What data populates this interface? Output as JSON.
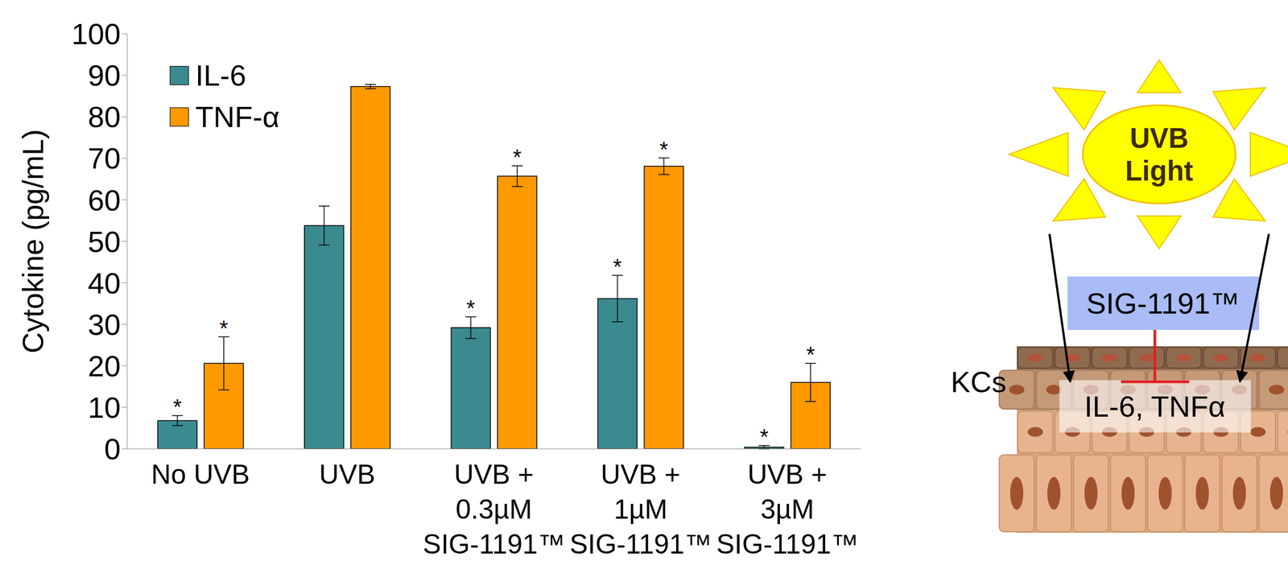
{
  "chart_data": {
    "type": "bar",
    "y_label": "Cytokine (pg/mL)",
    "categories": [
      "No UVB",
      "UVB",
      "UVB +\n0.3µM\nSIG-1191™",
      "UVB +\n1µM\nSIG-1191™",
      "UVB +\n3µM\nSIG-1191™"
    ],
    "series": [
      {
        "name": "IL-6",
        "color": "#3a8a8f",
        "values": [
          6.8,
          53.8,
          29.2,
          36.2,
          0.4
        ],
        "errors": [
          1.2,
          4.7,
          2.6,
          5.6,
          0.4
        ],
        "significance": [
          "*",
          null,
          "*",
          "*",
          "*"
        ]
      },
      {
        "name": "TNF-α",
        "color": "#ff9900",
        "values": [
          20.6,
          87.3,
          65.7,
          68.1,
          16.0
        ],
        "errors": [
          6.4,
          0.5,
          2.5,
          2.0,
          4.6
        ],
        "significance": [
          "*",
          null,
          "*",
          "*",
          "*"
        ]
      }
    ],
    "ylim": [
      0,
      100
    ],
    "yticks": [
      0,
      10,
      20,
      30,
      40,
      50,
      60,
      70,
      80,
      90,
      100
    ],
    "grid": false,
    "legend": "upper left"
  },
  "diagram": {
    "source": "UVB\nLight",
    "inhibitor": "SIG-1191™",
    "cell_label": "KCs",
    "cytokines": "IL-6, TNFα"
  }
}
